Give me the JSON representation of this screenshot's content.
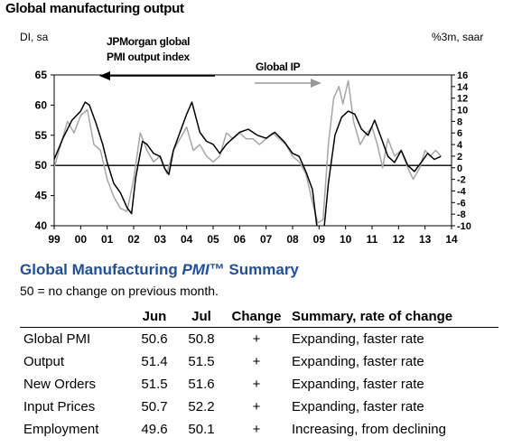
{
  "chart_data": {
    "type": "line",
    "title": "Global manufacturing output",
    "left_axis_label": "DI, sa",
    "right_axis_label": "%3m, saar",
    "left_ylim": [
      40,
      65
    ],
    "left_yticks": [
      "40",
      "45",
      "50",
      "55",
      "60",
      "65"
    ],
    "right_ylim": [
      -10,
      16
    ],
    "right_yticks": [
      "-10",
      "-8",
      "-6",
      "-4",
      "-2",
      "0",
      "2",
      "4",
      "6",
      "8",
      "10",
      "12",
      "14",
      "16"
    ],
    "xlim": [
      1999,
      2014
    ],
    "xticks": [
      "99",
      "00",
      "01",
      "02",
      "03",
      "04",
      "05",
      "06",
      "07",
      "08",
      "09",
      "10",
      "11",
      "12",
      "13",
      "14"
    ],
    "reference_line_left": 50,
    "annotations": {
      "pmi_label_line1": "JPMorgan global",
      "pmi_label_line2": "PMI output index",
      "ip_label": "Global IP"
    },
    "series": [
      {
        "name": "JPMorgan global PMI output index",
        "axis": "left",
        "color": "#000000",
        "points": [
          [
            1999.0,
            51.0
          ],
          [
            1999.33,
            54.5
          ],
          [
            1999.67,
            57.5
          ],
          [
            2000.0,
            59.0
          ],
          [
            2000.17,
            60.5
          ],
          [
            2000.33,
            60.0
          ],
          [
            2000.58,
            57.0
          ],
          [
            2000.83,
            53.5
          ],
          [
            2001.0,
            50.5
          ],
          [
            2001.25,
            47.0
          ],
          [
            2001.5,
            45.5
          ],
          [
            2001.75,
            43.0
          ],
          [
            2001.92,
            42.0
          ],
          [
            2002.08,
            48.0
          ],
          [
            2002.33,
            54.0
          ],
          [
            2002.5,
            53.5
          ],
          [
            2002.75,
            52.0
          ],
          [
            2003.0,
            51.5
          ],
          [
            2003.17,
            49.5
          ],
          [
            2003.33,
            48.5
          ],
          [
            2003.5,
            52.5
          ],
          [
            2003.75,
            55.5
          ],
          [
            2004.0,
            58.5
          ],
          [
            2004.2,
            60.5
          ],
          [
            2004.5,
            55.5
          ],
          [
            2004.75,
            54.0
          ],
          [
            2005.0,
            53.5
          ],
          [
            2005.25,
            52.0
          ],
          [
            2005.5,
            53.5
          ],
          [
            2005.75,
            54.5
          ],
          [
            2006.0,
            55.5
          ],
          [
            2006.33,
            56.0
          ],
          [
            2006.67,
            55.0
          ],
          [
            2007.0,
            54.5
          ],
          [
            2007.33,
            55.5
          ],
          [
            2007.67,
            54.0
          ],
          [
            2008.0,
            52.0
          ],
          [
            2008.25,
            51.5
          ],
          [
            2008.5,
            49.0
          ],
          [
            2008.75,
            46.0
          ],
          [
            2008.9,
            40.5
          ],
          [
            2009.1,
            35.5
          ],
          [
            2009.35,
            47.0
          ],
          [
            2009.6,
            55.0
          ],
          [
            2009.85,
            58.0
          ],
          [
            2010.1,
            59.0
          ],
          [
            2010.35,
            58.5
          ],
          [
            2010.6,
            56.0
          ],
          [
            2010.85,
            55.0
          ],
          [
            2011.1,
            57.5
          ],
          [
            2011.35,
            54.5
          ],
          [
            2011.6,
            51.5
          ],
          [
            2011.85,
            50.5
          ],
          [
            2012.1,
            52.5
          ],
          [
            2012.35,
            50.0
          ],
          [
            2012.6,
            49.0
          ],
          [
            2012.85,
            50.5
          ],
          [
            2013.1,
            52.0
          ],
          [
            2013.35,
            51.0
          ],
          [
            2013.6,
            51.5
          ]
        ]
      },
      {
        "name": "Global IP",
        "axis": "right",
        "color": "#a6a6a6",
        "points": [
          [
            1999.0,
            0.0
          ],
          [
            1999.25,
            4.0
          ],
          [
            1999.5,
            8.0
          ],
          [
            1999.75,
            6.0
          ],
          [
            2000.0,
            9.0
          ],
          [
            2000.25,
            10.0
          ],
          [
            2000.5,
            4.0
          ],
          [
            2000.75,
            3.0
          ],
          [
            2001.0,
            -2.0
          ],
          [
            2001.25,
            -5.0
          ],
          [
            2001.5,
            -7.0
          ],
          [
            2001.75,
            -7.5
          ],
          [
            2002.0,
            -2.0
          ],
          [
            2002.25,
            6.0
          ],
          [
            2002.5,
            3.0
          ],
          [
            2002.75,
            1.0
          ],
          [
            2003.0,
            2.0
          ],
          [
            2003.25,
            -1.0
          ],
          [
            2003.5,
            3.0
          ],
          [
            2003.75,
            5.0
          ],
          [
            2004.0,
            7.0
          ],
          [
            2004.25,
            3.0
          ],
          [
            2004.5,
            4.0
          ],
          [
            2004.75,
            2.0
          ],
          [
            2005.0,
            1.0
          ],
          [
            2005.25,
            2.0
          ],
          [
            2005.5,
            6.0
          ],
          [
            2005.75,
            5.0
          ],
          [
            2006.0,
            6.0
          ],
          [
            2006.25,
            5.0
          ],
          [
            2006.5,
            5.0
          ],
          [
            2006.75,
            4.0
          ],
          [
            2007.0,
            5.0
          ],
          [
            2007.25,
            6.0
          ],
          [
            2007.5,
            5.0
          ],
          [
            2007.75,
            4.0
          ],
          [
            2008.0,
            2.0
          ],
          [
            2008.25,
            1.0
          ],
          [
            2008.5,
            -1.0
          ],
          [
            2008.75,
            -6.0
          ],
          [
            2008.95,
            -9.5
          ],
          [
            2009.15,
            -9.0
          ],
          [
            2009.35,
            4.0
          ],
          [
            2009.55,
            12.0
          ],
          [
            2009.75,
            14.0
          ],
          [
            2009.9,
            11.0
          ],
          [
            2010.1,
            15.0
          ],
          [
            2010.3,
            8.0
          ],
          [
            2010.55,
            4.0
          ],
          [
            2010.8,
            6.0
          ],
          [
            2011.0,
            7.0
          ],
          [
            2011.2,
            4.0
          ],
          [
            2011.4,
            0.0
          ],
          [
            2011.6,
            5.0
          ],
          [
            2011.85,
            2.0
          ],
          [
            2012.1,
            3.0
          ],
          [
            2012.35,
            0.0
          ],
          [
            2012.55,
            -2.0
          ],
          [
            2012.8,
            0.0
          ],
          [
            2013.0,
            3.0
          ],
          [
            2013.2,
            2.0
          ],
          [
            2013.4,
            3.0
          ],
          [
            2013.6,
            2.0
          ]
        ]
      }
    ],
    "table": {
      "title": "Global Manufacturing ",
      "title_italic": "PMI",
      "title_tm": "™",
      "title_tail": " Summary",
      "note": "50 = no change on previous month.",
      "columns": [
        "",
        "Jun",
        "Jul",
        "Change",
        "Summary, rate of change"
      ],
      "rows": [
        {
          "label": "Global PMI",
          "jun": "50.6",
          "jul": "50.8",
          "change": "+",
          "summary": "Expanding, faster rate"
        },
        {
          "label": "Output",
          "jun": "51.4",
          "jul": "51.5",
          "change": "+",
          "summary": "Expanding, faster rate"
        },
        {
          "label": "New Orders",
          "jun": "51.5",
          "jul": "51.6",
          "change": "+",
          "summary": "Expanding, faster rate"
        },
        {
          "label": "Input Prices",
          "jun": "50.7",
          "jul": "52.2",
          "change": "+",
          "summary": "Expanding, faster rate"
        },
        {
          "label": "Employment",
          "jun": "49.6",
          "jul": "50.1",
          "change": "+",
          "summary": "Increasing, from declining"
        }
      ]
    }
  }
}
